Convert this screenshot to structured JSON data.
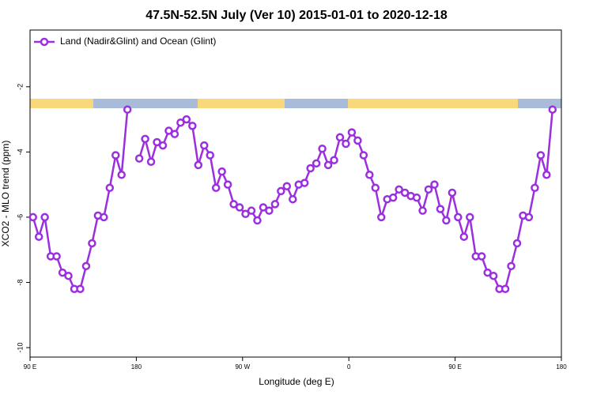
{
  "chart_data": {
    "type": "line",
    "title": "47.5N-52.5N July (Ver 10)   2015-01-01 to 2020-12-18",
    "x_label": "Longitude (deg E)",
    "y_label": "XCO2 - MLO trend (ppm)",
    "x": [
      92.5,
      97.5,
      102.5,
      107.5,
      112.5,
      117.5,
      122.5,
      127.5,
      132.5,
      137.5,
      142.5,
      147.5,
      152.5,
      157.5,
      162.5,
      167.5,
      172.5,
      177.5,
      182.5,
      187.5,
      192.5,
      197.5,
      202.5,
      207.5,
      212.5,
      217.5,
      222.5,
      227.5,
      232.5,
      237.5,
      242.5,
      247.5,
      252.5,
      257.5,
      262.5,
      267.5,
      272.5,
      277.5,
      282.5,
      287.5,
      292.5,
      297.5,
      302.5,
      307.5,
      312.5,
      317.5,
      322.5,
      327.5,
      332.5,
      337.5,
      342.5,
      347.5,
      352.5,
      357.5,
      362.5,
      367.5,
      372.5,
      377.5,
      382.5,
      387.5,
      392.5,
      397.5,
      402.5,
      407.5,
      412.5,
      417.5,
      422.5,
      427.5,
      432.5,
      437.5,
      442.5,
      447.5,
      452.5,
      457.5,
      462.5,
      467.5,
      472.5,
      477.5,
      482.5,
      487.5,
      492.5,
      497.5,
      502.5,
      507.5,
      512.5,
      517.5,
      522.5,
      527.5,
      532.5
    ],
    "series": [
      {
        "name": "Land (Nadir&Glint) and Ocean (Glint)",
        "color": "#9b2fe0",
        "values": [
          -6.0,
          -6.6,
          -6.0,
          -7.2,
          -7.2,
          -7.7,
          -7.8,
          -8.2,
          -8.2,
          -7.5,
          -6.8,
          -5.95,
          -6.0,
          -5.1,
          -4.1,
          -4.7,
          -2.7,
          null,
          -4.2,
          -3.6,
          -4.3,
          -3.7,
          -3.8,
          -3.35,
          -3.45,
          -3.1,
          -3.0,
          -3.2,
          -4.4,
          -3.8,
          -4.1,
          -5.1,
          -4.6,
          -5.0,
          -5.6,
          -5.7,
          -5.9,
          -5.8,
          -6.1,
          -5.7,
          -5.8,
          -5.6,
          -5.2,
          -5.05,
          -5.45,
          -5.0,
          -4.95,
          -4.5,
          -4.35,
          -3.9,
          -4.4,
          -4.25,
          -3.55,
          -3.75,
          -3.4,
          -3.65,
          -4.1,
          -4.7,
          -5.1,
          -6.0,
          -5.45,
          -5.4,
          -5.15,
          -5.25,
          -5.35,
          -5.4,
          -5.8,
          -5.15,
          -5.0,
          -5.75,
          -6.1,
          -5.25,
          -6.0,
          -6.6,
          -6.0,
          -7.2,
          -7.2,
          -7.7,
          -7.8,
          -8.2,
          -8.2,
          -7.5,
          -6.8,
          -5.95,
          -6.0,
          -5.1,
          -4.1,
          -4.7,
          -2.7
        ]
      }
    ],
    "xlim": [
      90,
      540
    ],
    "xticks": [
      {
        "value": 90,
        "label": "90 E"
      },
      180,
      {
        "value": 270,
        "label": "90 W"
      },
      {
        "value": 360,
        "label": "0"
      },
      {
        "value": 450,
        "label": "90 E"
      },
      {
        "value": 540,
        "label": "180"
      }
    ],
    "ylim": [
      -10.29,
      -0.26
    ],
    "yticks": [
      -2,
      -4,
      -6,
      -8,
      -10
    ],
    "legend": "top-left"
  }
}
